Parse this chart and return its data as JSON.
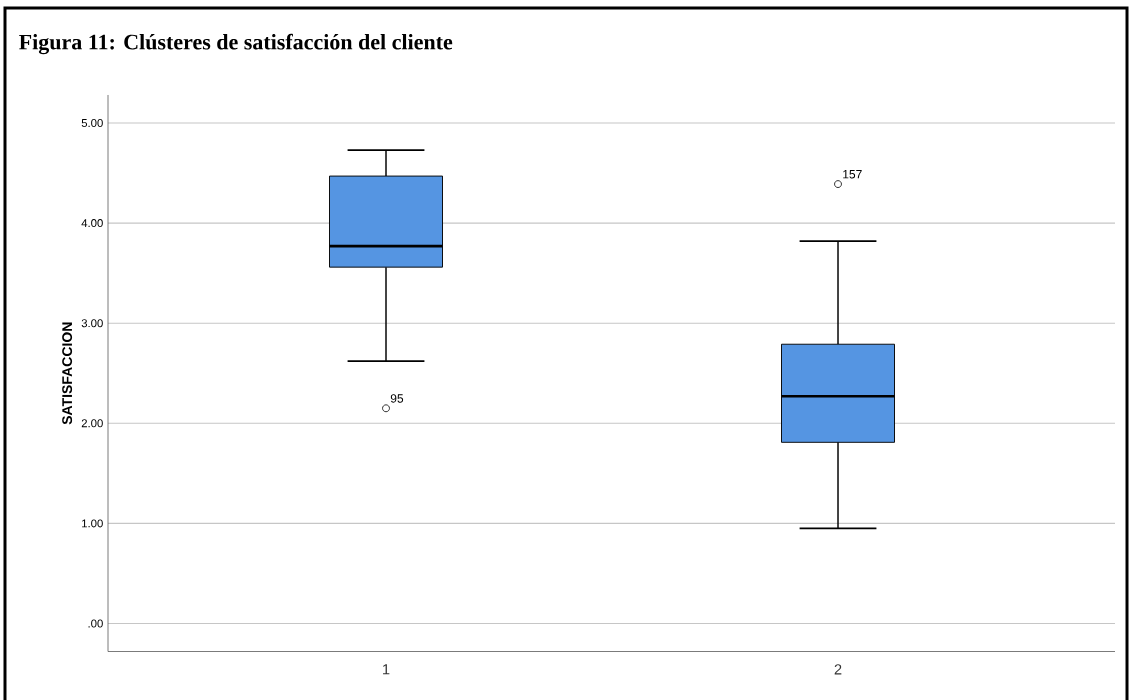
{
  "chart_data": {
    "type": "box",
    "title": "Figura 11: Clústeres de satisfacción del cliente",
    "ylabel": "SATISFACCION",
    "categories": [
      "1",
      "2"
    ],
    "color": "#5595e2",
    "boxes": [
      {
        "low": 2.62,
        "q1": 3.56,
        "median": 3.77,
        "q3": 4.47,
        "high": 4.73,
        "outliers": [
          2.15
        ]
      },
      {
        "low": 0.95,
        "q1": 1.81,
        "median": 2.27,
        "q3": 2.79,
        "high": 3.82,
        "outliers": [
          4.39
        ]
      }
    ],
    "annotations": [
      "95",
      "157"
    ],
    "ylim": [
      -0.28,
      5.28
    ],
    "yticks": [
      {
        "value": 0,
        "label": ".00"
      },
      {
        "value": 1,
        "label": "1.00"
      },
      {
        "value": 2,
        "label": "2.00"
      },
      {
        "value": 3,
        "label": "3.00"
      },
      {
        "value": 4,
        "label": "4.00"
      },
      {
        "value": 5,
        "label": "5.00"
      }
    ],
    "grid": "y"
  }
}
